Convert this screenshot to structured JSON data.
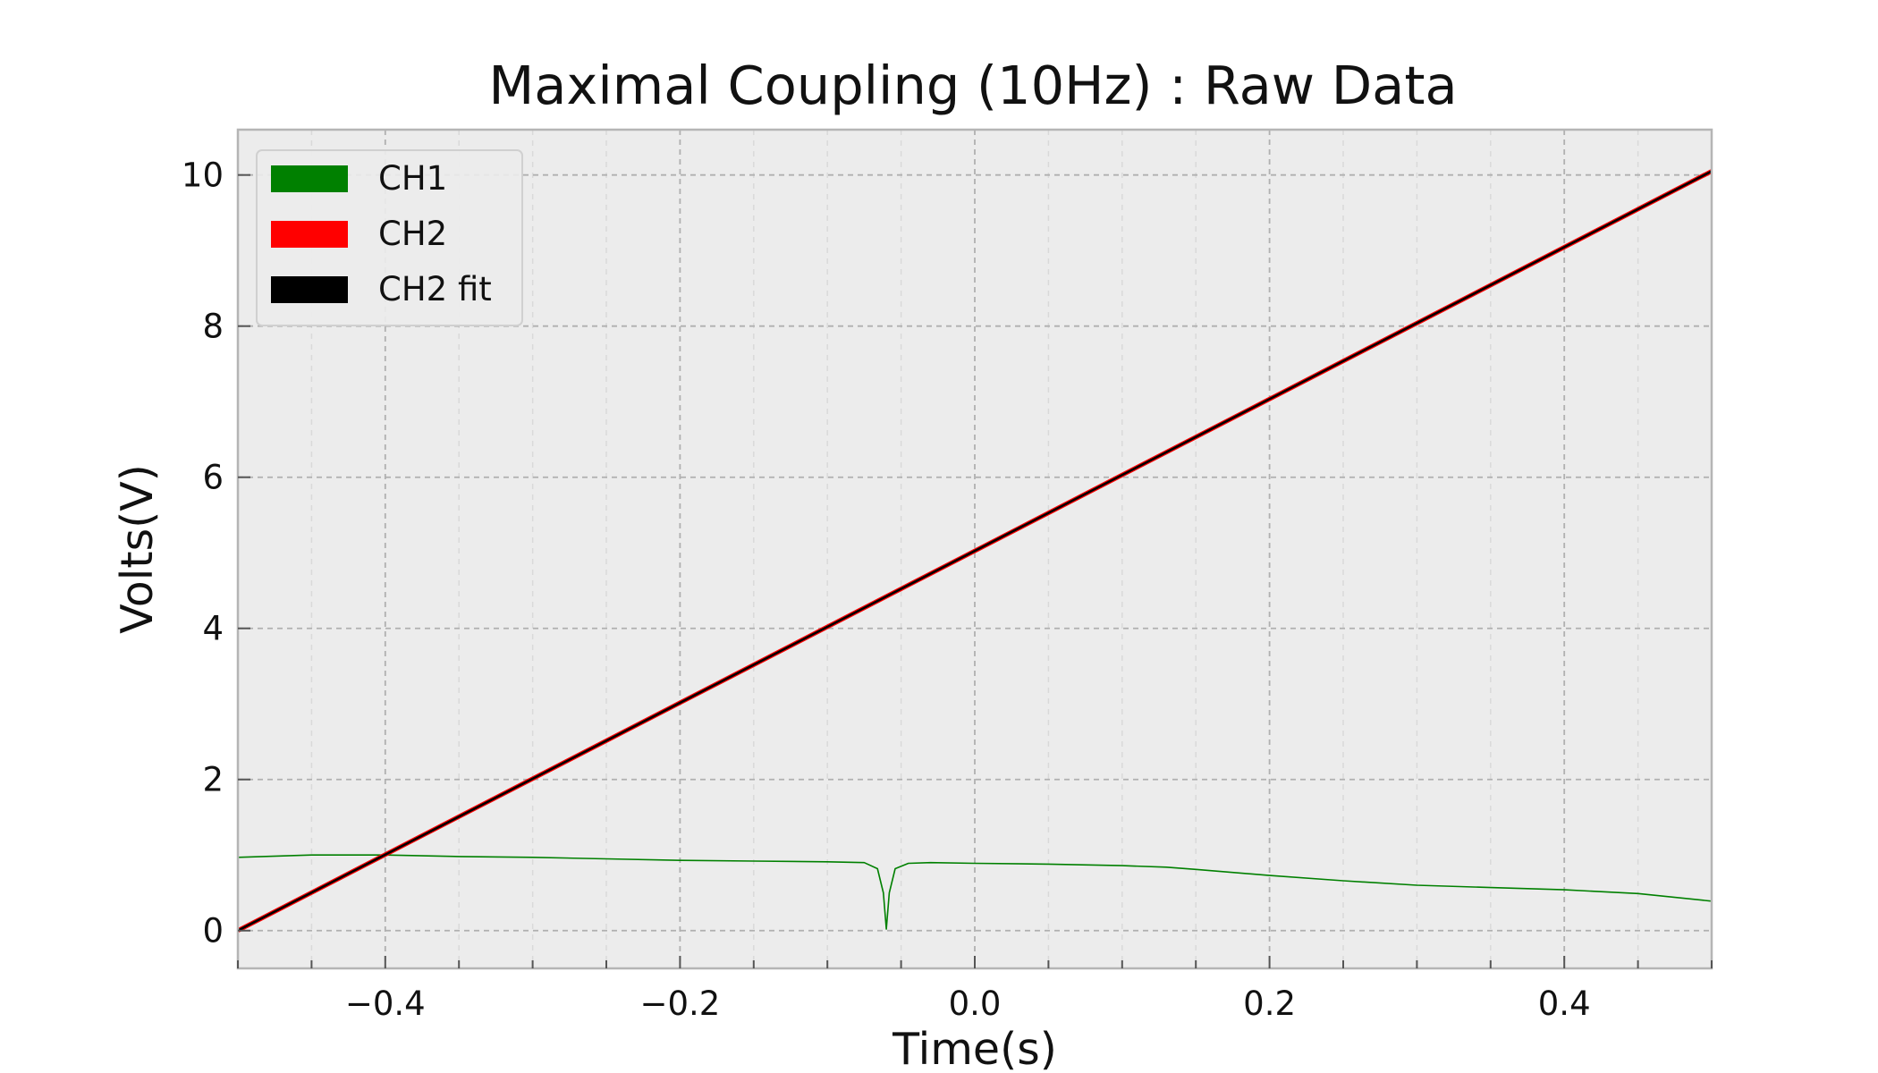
{
  "chart_data": {
    "type": "line",
    "title": "Maximal Coupling (10Hz) : Raw Data",
    "xlabel": "Time(s)",
    "ylabel": "Volts(V)",
    "xlim": [
      -0.5,
      0.5
    ],
    "ylim": [
      -0.5,
      10.6
    ],
    "x_ticks": [
      -0.4,
      -0.2,
      0.0,
      0.2,
      0.4
    ],
    "x_tick_labels": [
      "−0.4",
      "−0.2",
      "0.0",
      "0.2",
      "0.4"
    ],
    "y_ticks": [
      0,
      2,
      4,
      6,
      8,
      10
    ],
    "y_tick_labels": [
      "0",
      "2",
      "4",
      "6",
      "8",
      "10"
    ],
    "grid": true,
    "legend_position": "top-left",
    "plot_background": "#ececec",
    "series": [
      {
        "name": "CH1",
        "color": "#008000",
        "x": [
          -0.5,
          -0.45,
          -0.4,
          -0.35,
          -0.3,
          -0.25,
          -0.2,
          -0.15,
          -0.1,
          -0.075,
          -0.066,
          -0.062,
          -0.06,
          -0.058,
          -0.054,
          -0.045,
          -0.03,
          0.0,
          0.05,
          0.1,
          0.13,
          0.15,
          0.2,
          0.25,
          0.3,
          0.35,
          0.4,
          0.45,
          0.5
        ],
        "y": [
          0.97,
          1.0,
          1.0,
          0.98,
          0.97,
          0.95,
          0.93,
          0.92,
          0.91,
          0.9,
          0.82,
          0.5,
          0.02,
          0.5,
          0.82,
          0.89,
          0.9,
          0.89,
          0.88,
          0.86,
          0.84,
          0.81,
          0.73,
          0.66,
          0.6,
          0.57,
          0.54,
          0.49,
          0.39
        ]
      },
      {
        "name": "CH2",
        "color": "#ff0000",
        "x": [
          -0.5,
          0.5
        ],
        "y": [
          0.0,
          10.05
        ]
      },
      {
        "name": "CH2 fit",
        "color": "#000000",
        "x": [
          -0.5,
          0.5
        ],
        "y": [
          0.0,
          10.05
        ]
      }
    ]
  }
}
